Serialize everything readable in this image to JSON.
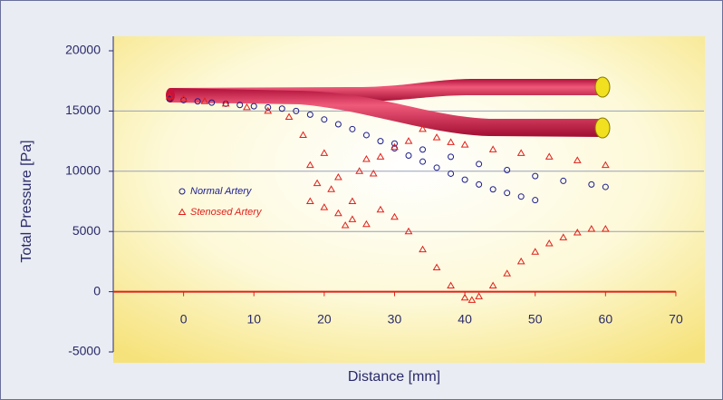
{
  "chart_data": {
    "type": "scatter",
    "xlabel": "Distance [mm]",
    "ylabel": "Total Pressure [Pa]",
    "xlim": [
      -10,
      74
    ],
    "ylim": [
      -5000,
      20000
    ],
    "xticks": [
      0,
      10,
      20,
      30,
      40,
      50,
      60,
      70
    ],
    "yticks": [
      -5000,
      0,
      5000,
      10000,
      15000,
      20000
    ],
    "grid": true,
    "series": [
      {
        "name": "Normal Artery",
        "color": "#1c1c8c",
        "marker": "circle",
        "x": [
          -2,
          0,
          2,
          4,
          6,
          8,
          10,
          12,
          14,
          16,
          18,
          20,
          22,
          24,
          26,
          28,
          30,
          32,
          34,
          36,
          38,
          40,
          42,
          44,
          46,
          48,
          50,
          30,
          34,
          38,
          42,
          46,
          50,
          54,
          58,
          60
        ],
        "values": [
          16000,
          15900,
          15800,
          15700,
          15600,
          15500,
          15400,
          15300,
          15200,
          15000,
          14700,
          14300,
          13900,
          13500,
          13000,
          12500,
          11900,
          11300,
          10800,
          10300,
          9800,
          9300,
          8900,
          8500,
          8200,
          7900,
          7600,
          12300,
          11800,
          11200,
          10600,
          10100,
          9600,
          9200,
          8900,
          8700
        ]
      },
      {
        "name": "Stenosed Artery",
        "color": "#e0201a",
        "marker": "triangle",
        "x": [
          -2,
          0,
          3,
          6,
          9,
          12,
          15,
          17,
          18,
          19,
          20,
          21,
          22,
          23,
          24,
          25,
          26,
          27,
          28,
          30,
          32,
          34,
          36,
          38,
          40,
          44,
          48,
          52,
          56,
          60,
          18,
          20,
          22,
          24,
          26,
          28,
          30,
          32,
          34,
          36,
          38,
          40,
          41,
          42,
          44,
          46,
          48,
          50,
          52,
          54,
          56,
          58,
          60
        ],
        "values": [
          16200,
          16000,
          15800,
          15600,
          15300,
          15000,
          14500,
          13000,
          10500,
          9000,
          11500,
          8500,
          9500,
          5500,
          7500,
          10000,
          11000,
          9800,
          11200,
          12000,
          12500,
          13500,
          12800,
          12400,
          12200,
          11800,
          11500,
          11200,
          10900,
          10500,
          7500,
          7000,
          6500,
          6000,
          5600,
          6800,
          6200,
          5000,
          3500,
          2000,
          500,
          -500,
          -700,
          -400,
          500,
          1500,
          2500,
          3300,
          4000,
          4500,
          4900,
          5200,
          5200
        ]
      }
    ]
  }
}
